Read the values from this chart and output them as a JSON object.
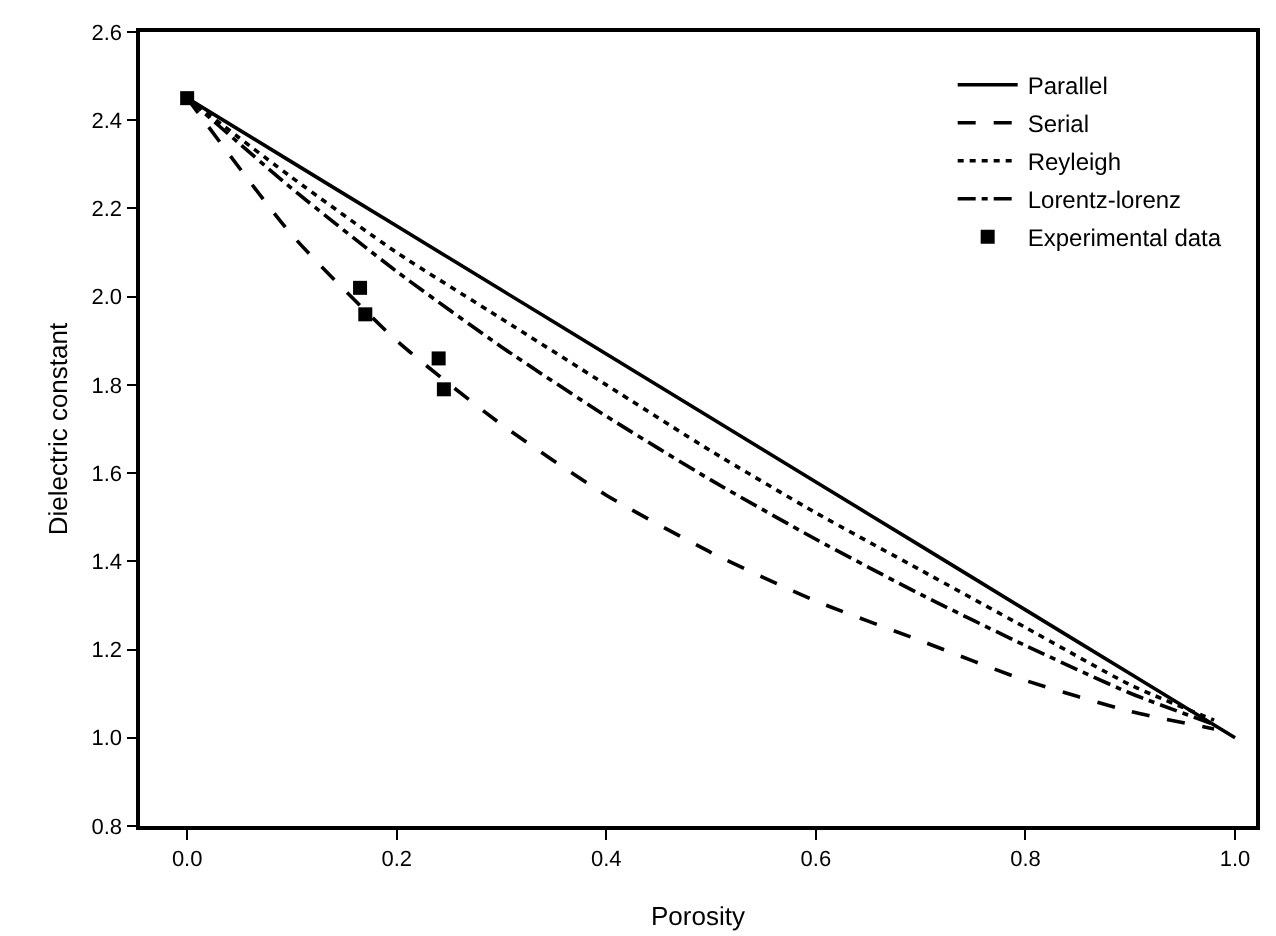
{
  "chart_data": {
    "type": "line",
    "xlabel": "Porosity",
    "ylabel": "Dielectric constant",
    "x": [
      0,
      0.1,
      0.2,
      0.3,
      0.4,
      0.5,
      0.6,
      0.7,
      0.8,
      0.9,
      1.0
    ],
    "series": [
      {
        "name": "Parallel",
        "color": "#000000",
        "line_style": "solid",
        "values": [
          2.45,
          2.305,
          2.16,
          2.015,
          1.87,
          1.725,
          1.58,
          1.435,
          1.29,
          1.145,
          1.0
        ]
      },
      {
        "name": "Serial",
        "color": "#000000",
        "line_style": "dashed",
        "x": [
          0,
          0.1,
          0.2,
          0.3,
          0.4,
          0.5,
          0.6,
          0.7,
          0.8,
          0.9,
          0.98
        ],
        "values": [
          2.45,
          2.14,
          1.9,
          1.71,
          1.55,
          1.42,
          1.31,
          1.22,
          1.13,
          1.06,
          1.02
        ]
      },
      {
        "name": "Reyleigh",
        "color": "#000000",
        "line_style": "dotted",
        "x": [
          0,
          0.1,
          0.2,
          0.3,
          0.4,
          0.5,
          0.6,
          0.7,
          0.8,
          0.9,
          0.98
        ],
        "values": [
          2.45,
          2.27,
          2.1,
          1.95,
          1.8,
          1.65,
          1.51,
          1.38,
          1.25,
          1.12,
          1.04
        ]
      },
      {
        "name": "Lorentz-lorenz",
        "color": "#000000",
        "line_style": "dashdot",
        "x": [
          0,
          0.1,
          0.2,
          0.3,
          0.4,
          0.5,
          0.6,
          0.7,
          0.8,
          0.9,
          0.98
        ],
        "values": [
          2.45,
          2.245,
          2.057,
          1.886,
          1.729,
          1.584,
          1.45,
          1.325,
          1.209,
          1.101,
          1.03
        ]
      },
      {
        "name": "Experimental data",
        "type": "scatter",
        "marker": "square",
        "color": "#000000",
        "x": [
          0,
          0.165,
          0.17,
          0.24,
          0.245
        ],
        "values": [
          2.45,
          2.02,
          1.96,
          1.86,
          1.79
        ]
      }
    ],
    "xlim": [
      -0.045,
      1.02
    ],
    "xticks": [
      {
        "value": 0,
        "label": "0.0"
      },
      0.2,
      0.4,
      0.6,
      0.8,
      {
        "value": 1,
        "label": "1.0"
      }
    ],
    "ylim": [
      0.8,
      2.6
    ],
    "yticks": [
      0.8,
      {
        "value": 1,
        "label": "1.0"
      },
      1.2,
      1.4,
      1.6,
      1.8,
      {
        "value": 2,
        "label": "2.0"
      },
      2.2,
      2.4,
      2.6
    ],
    "grid": false,
    "legend": "top right"
  }
}
